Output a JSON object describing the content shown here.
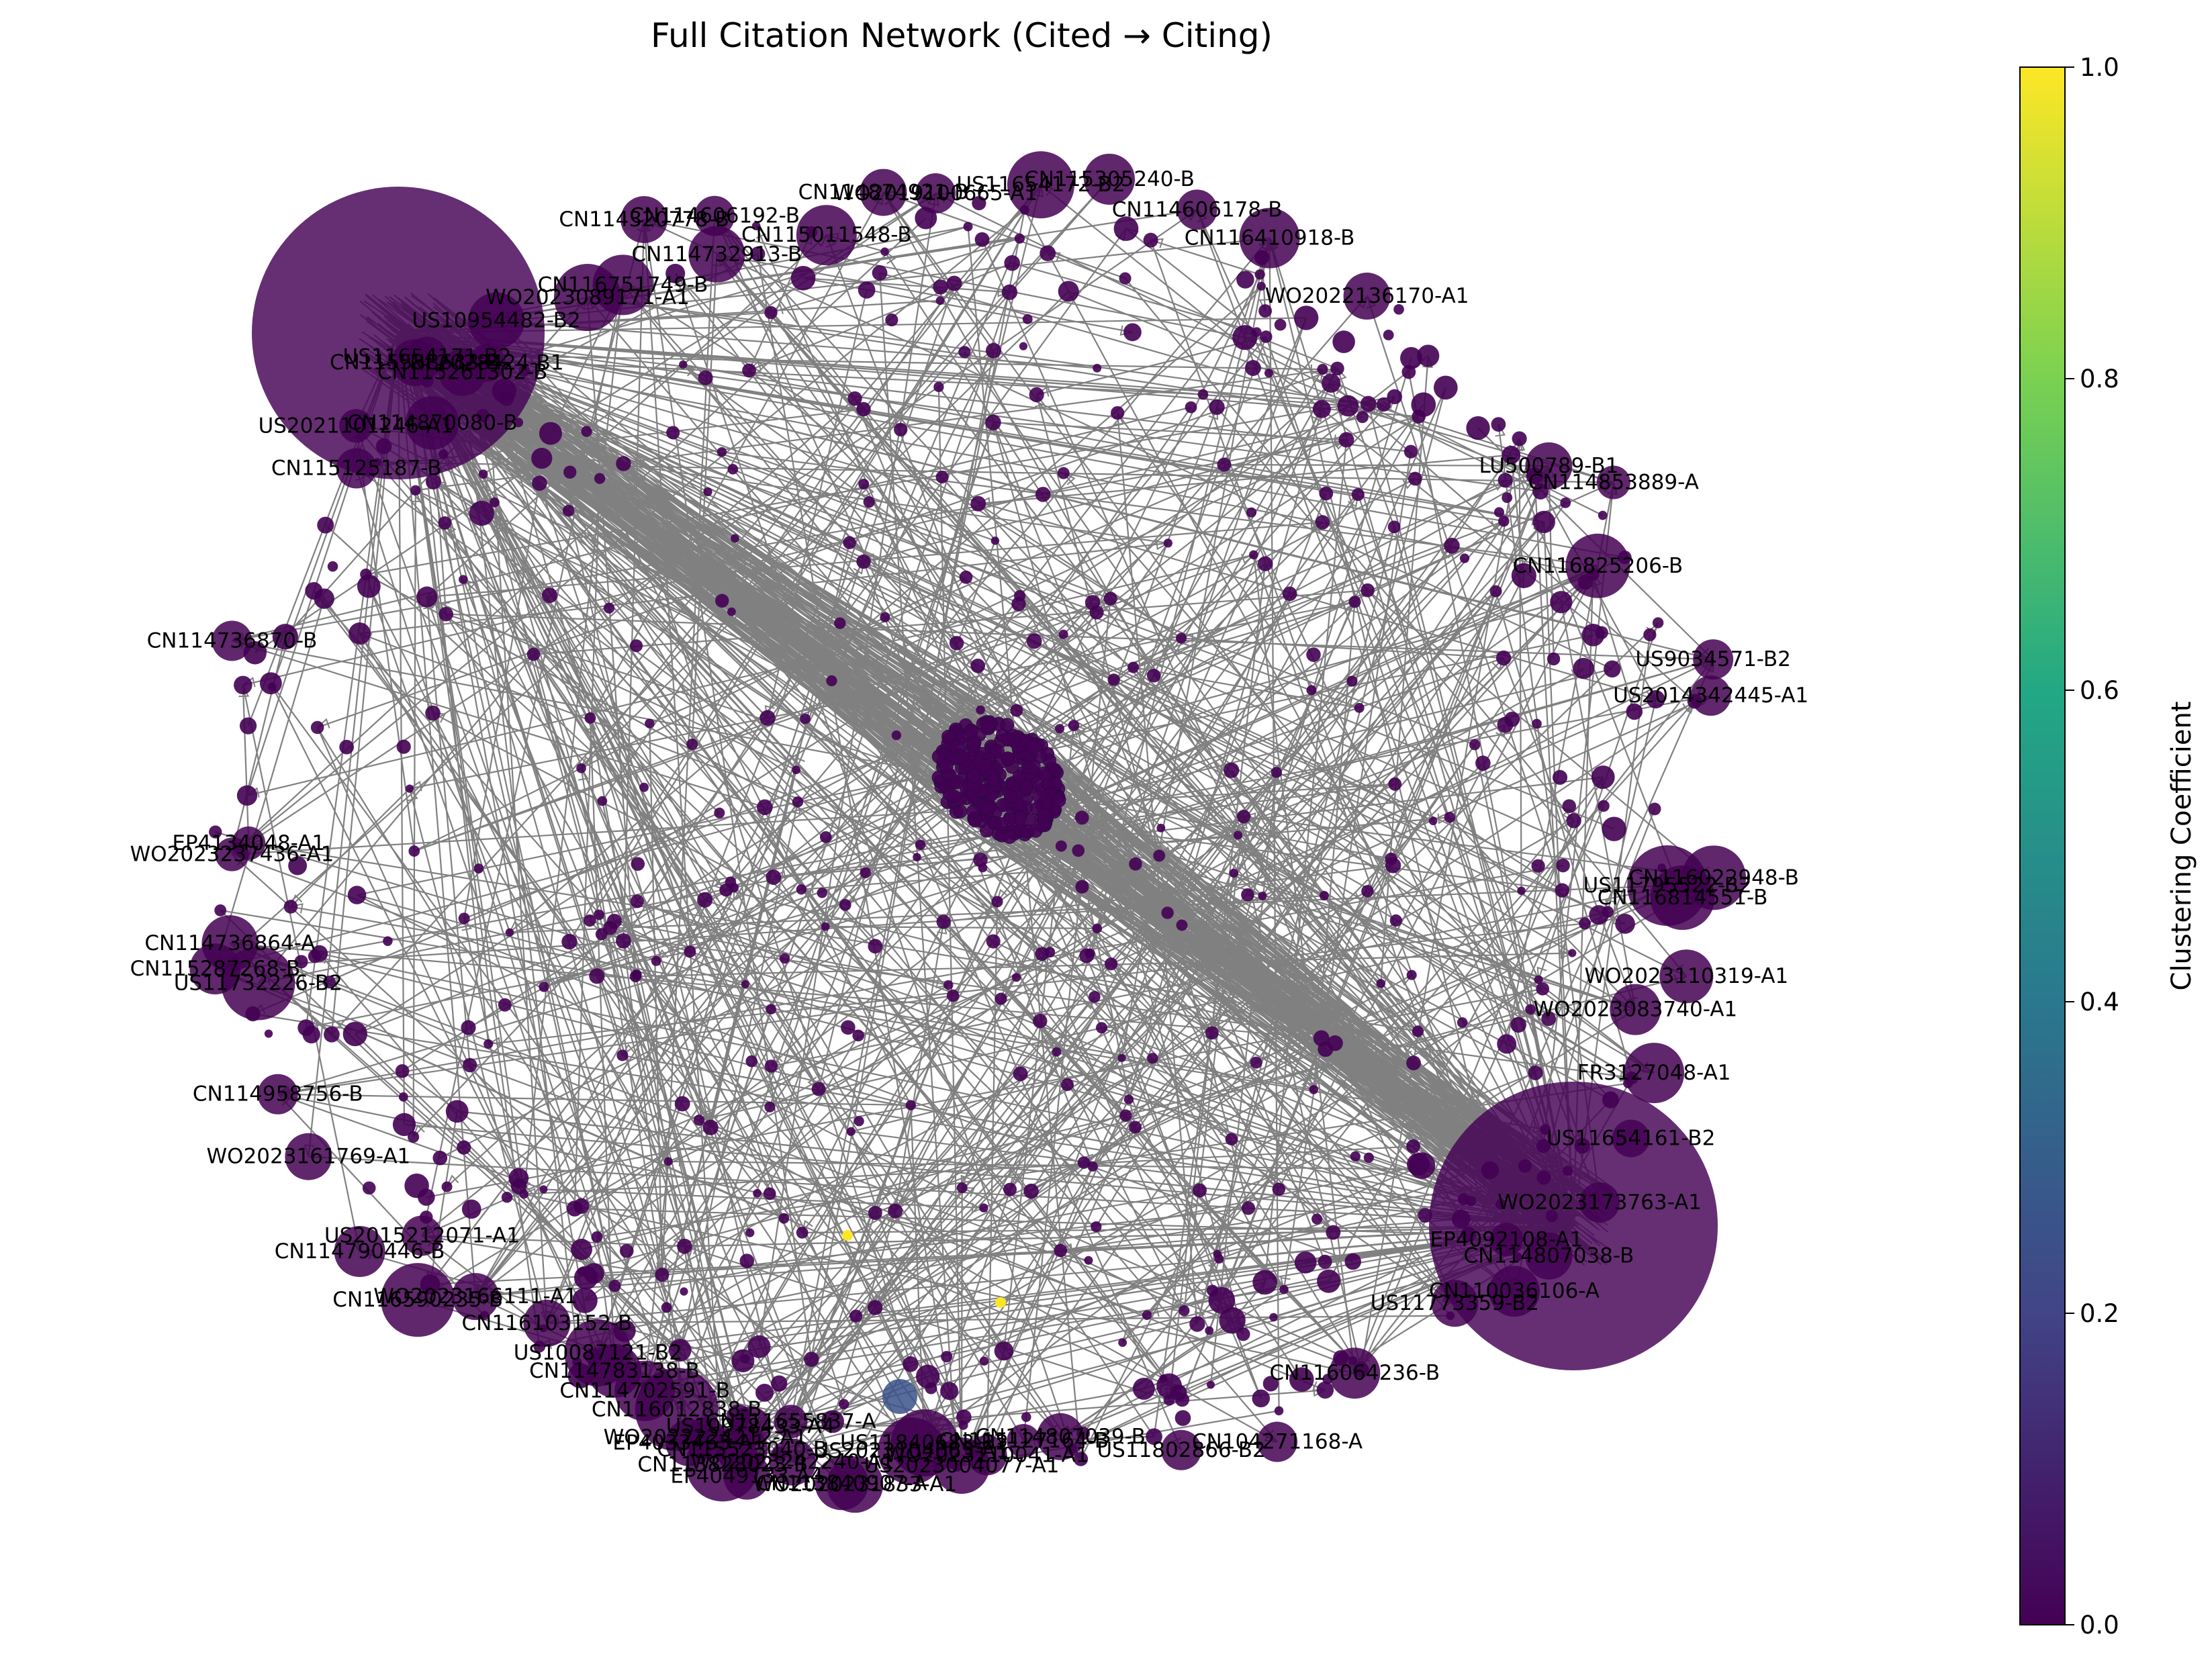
{
  "title": "Full Citation Network (Cited → Citing)",
  "colorbar": {
    "label": "Clustering Coefficient",
    "ticks": [
      "0.0",
      "0.2",
      "0.4",
      "0.6",
      "0.8",
      "1.0"
    ],
    "colormap": [
      "#440154",
      "#414487",
      "#2a788e",
      "#22a884",
      "#7ad151",
      "#fde725"
    ]
  },
  "colors": {
    "edge": "#808080",
    "node_default": "#440154",
    "node_medium": "#3b528b",
    "node_high": "#fde725"
  },
  "nodes": [
    "CN114874921-B",
    "WO2019100665-A1",
    "CN115305240-B",
    "US11654172-B2",
    "CN114606178-B",
    "CN116410918-B",
    "WO2022136170-A1",
    "CN114732913-B",
    "CN115011548-B",
    "CN116751749-B",
    "WO2023089171-A1",
    "CN114320778-B",
    "CN114606192-B",
    "US10954482-B2",
    "CN115261302-B",
    "NL2028424-B1",
    "CN114870080-B",
    "CN115558633-B",
    "US11654171-B2",
    "US2021101246-A1",
    "CN115125187-B",
    "LU500789-B1",
    "CN114853889-A",
    "CN116825206-B",
    "CN114736870-B",
    "US9034571-B2",
    "US2014342445-A1",
    "EP4134048-A1",
    "WO2023237436-A1",
    "CN116022948-B",
    "US11795522-B2",
    "CN116814551-B",
    "CN114736864-A",
    "CN115287268-B",
    "US11732226-B2",
    "WO2023110319-A1",
    "WO2023083740-A1",
    "CN114958756-B",
    "FR3127048-A1",
    "WO2023161769-A1",
    "US11654161-B2",
    "WO2023173763-A1",
    "CN114807038-B",
    "EP4092108-A1",
    "CN110036106-A",
    "US11773359-B2",
    "CN114790446-B",
    "US2015212071-A1",
    "CN116590235-B",
    "WO2023166111-A1",
    "CN116103152-B",
    "CN116064236-B",
    "US10087121-B2",
    "CN114783138-B",
    "CN104271168-A",
    "CN114702591-B",
    "CN116012838-B",
    "US11802866-B2",
    "EP4033463-A1",
    "WO2022224212-A1",
    "WO2020231833-A1",
    "CN115523040-B",
    "WO2023242240-A1",
    "US11840683-B2",
    "WO2023110041-A1",
    "CN115127164-B",
    "CN113828023-B",
    "EP4049133-A4",
    "US10978433-A4",
    "CN113840907-A",
    "US2023104063-A1",
    "US2023004077-A1",
    "CN114807039-B",
    "CN111655837-A"
  ]
}
